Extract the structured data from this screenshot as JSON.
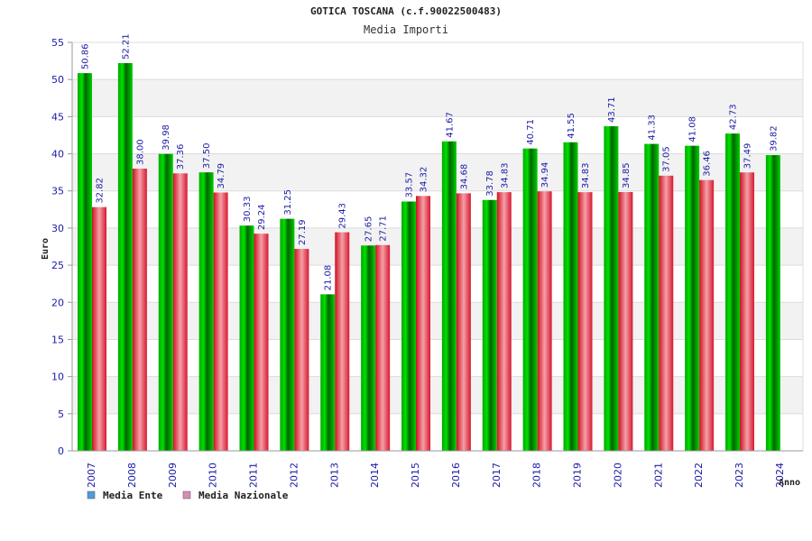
{
  "colors": {
    "ente": "#00c000",
    "nazionale": "#e8203a",
    "legend_ente": "#4f9bdc",
    "legend_nazionale": "#d98bb5",
    "band": "#f2f2f2",
    "grid": "#dcdcdc"
  },
  "chart_data": {
    "type": "bar",
    "title": "GOTICA TOSCANA (c.f.90022500483)",
    "subtitle": "Media Importi",
    "ylabel": "Euro",
    "xlabel": "Anno",
    "ylim": [
      0,
      55
    ],
    "ytick_step": 5,
    "grid": true,
    "legend_position": "bottom-left",
    "categories": [
      "2007",
      "2008",
      "2009",
      "2010",
      "2011",
      "2012",
      "2013",
      "2014",
      "2015",
      "2016",
      "2017",
      "2018",
      "2019",
      "2020",
      "2021",
      "2022",
      "2023",
      "2024"
    ],
    "series": [
      {
        "name": "Media Ente",
        "values": [
          50.86,
          52.21,
          39.98,
          37.5,
          30.33,
          31.25,
          21.08,
          27.65,
          33.57,
          41.67,
          33.78,
          40.71,
          41.55,
          43.71,
          41.33,
          41.08,
          42.73,
          39.82
        ],
        "labels": [
          "50.86",
          "52.21",
          "39.98",
          "37.50",
          "30.33",
          "31.25",
          "21.08",
          "27.65",
          "33.57",
          "41.67",
          "33.78",
          "40.71",
          "41.55",
          "43.71",
          "41.33",
          "41.08",
          "42.73",
          "39.82"
        ]
      },
      {
        "name": "Media Nazionale",
        "values": [
          32.82,
          38.0,
          37.36,
          34.79,
          29.24,
          27.19,
          29.43,
          27.71,
          34.32,
          34.68,
          34.83,
          34.94,
          34.83,
          34.85,
          37.05,
          36.46,
          37.49,
          null
        ],
        "labels": [
          "32.82",
          "38.00",
          "37.36",
          "34.79",
          "29.24",
          "27.19",
          "29.43",
          "27.71",
          "34.32",
          "34.68",
          "34.83",
          "34.94",
          "34.83",
          "34.85",
          "37.05",
          "36.46",
          "37.49",
          ""
        ]
      }
    ]
  }
}
